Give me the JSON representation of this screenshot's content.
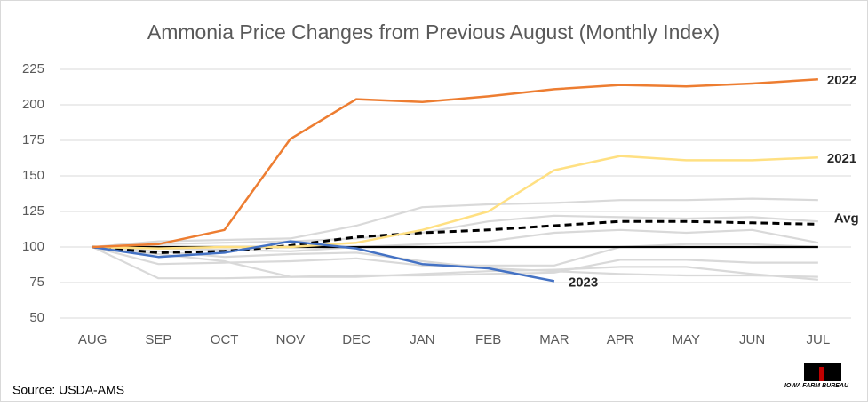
{
  "chart_data": {
    "type": "line",
    "title": "Ammonia Price Changes from Previous August (Monthly Index)",
    "source": "Source: USDA-AMS",
    "logo_text": "IOWA FARM BUREAU",
    "logo_tagline": "PEOPLE. PROGRESS. PRIDE.",
    "categories": [
      "AUG",
      "SEP",
      "OCT",
      "NOV",
      "DEC",
      "JAN",
      "FEB",
      "MAR",
      "APR",
      "MAY",
      "JUN",
      "JUL"
    ],
    "ylim": [
      50,
      225
    ],
    "yticks": [
      50,
      75,
      100,
      125,
      150,
      175,
      200,
      225
    ],
    "grid": true,
    "series": [
      {
        "color": "#d9d9d9",
        "values": [
          100,
          104,
          105,
          106,
          115,
          128,
          130,
          131,
          133,
          133,
          134,
          133
        ]
      },
      {
        "color": "#d9d9d9",
        "values": [
          100,
          102,
          103,
          104,
          106,
          110,
          118,
          122,
          121,
          120,
          121,
          118
        ]
      },
      {
        "color": "#d9d9d9",
        "values": [
          100,
          99,
          98,
          97,
          100,
          102,
          104,
          110,
          112,
          110,
          112,
          103
        ]
      },
      {
        "color": "#d9d9d9",
        "values": [
          100,
          88,
          89,
          90,
          92,
          87,
          87,
          87,
          100,
          102,
          102,
          100
        ]
      },
      {
        "color": "#d9d9d9",
        "values": [
          100,
          78,
          78,
          79,
          80,
          80,
          81,
          82,
          91,
          91,
          89,
          89
        ]
      },
      {
        "color": "#d9d9d9",
        "values": [
          100,
          95,
          90,
          79,
          79,
          81,
          83,
          84,
          86,
          86,
          81,
          77
        ]
      },
      {
        "color": "#d9d9d9",
        "values": [
          100,
          97,
          93,
          95,
          96,
          90,
          85,
          83,
          81,
          80,
          80,
          79
        ]
      },
      {
        "color": "#000000",
        "values": [
          100,
          100,
          100,
          100,
          100,
          100,
          100,
          100,
          100,
          100,
          100,
          100
        ]
      },
      {
        "name": "Avg",
        "color": "#000000",
        "dashed": true,
        "values": [
          100,
          96,
          97,
          101,
          107,
          110,
          112,
          115,
          118,
          118,
          117,
          116
        ]
      },
      {
        "name": "2021",
        "color": "#ffe082",
        "values": [
          100,
          99,
          100,
          100,
          103,
          112,
          125,
          154,
          164,
          161,
          161,
          163
        ]
      },
      {
        "name": "2023",
        "color": "#4472c4",
        "values": [
          100,
          93,
          96,
          104,
          99,
          88,
          85,
          76,
          null,
          null,
          null,
          null
        ]
      },
      {
        "name": "2022",
        "color": "#ed7d31",
        "values": [
          100,
          102,
          112,
          176,
          204,
          202,
          206,
          211,
          214,
          213,
          215,
          218
        ]
      }
    ]
  }
}
